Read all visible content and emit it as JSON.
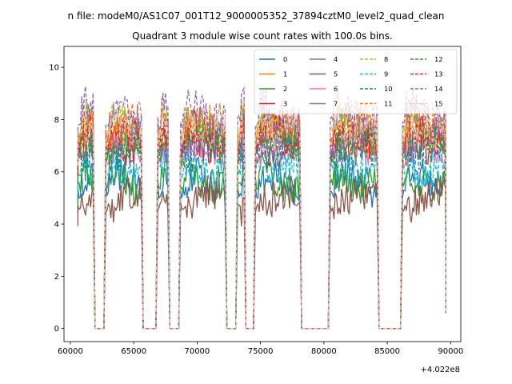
{
  "chart_data": {
    "type": "line",
    "suptitle": "n file: modeM0/AS1C07_001T12_9000005352_37894cztM0_level2_quad_clean",
    "title": "Quadrant 3 module wise count rates with 100.0s bins.",
    "xlabel": "",
    "ylabel": "",
    "x_offset_label": "+4.022e8",
    "xlim": [
      59500,
      90800
    ],
    "ylim": [
      -0.5,
      10.8
    ],
    "xticks": [
      60000,
      65000,
      70000,
      75000,
      80000,
      85000,
      90000
    ],
    "xtick_labels": [
      "60000",
      "65000",
      "70000",
      "75000",
      "80000",
      "85000",
      "90000"
    ],
    "yticks": [
      0,
      2,
      4,
      6,
      8,
      10
    ],
    "ytick_labels": [
      "0",
      "2",
      "4",
      "6",
      "8",
      "10"
    ],
    "grid": false,
    "legend": {
      "placement": "top-right",
      "columns": 4
    },
    "segments": [
      [
        60600,
        61800
      ],
      [
        62800,
        65600
      ],
      [
        66900,
        67700
      ],
      [
        68700,
        72200
      ],
      [
        73200,
        73700
      ],
      [
        74600,
        78100
      ],
      [
        80500,
        84200
      ],
      [
        86200,
        89600
      ]
    ],
    "off_level": 0,
    "series": [
      {
        "name": "0",
        "color": "#1f77b4",
        "dash": false,
        "mean": 5.5
      },
      {
        "name": "1",
        "color": "#ff7f0e",
        "dash": false,
        "mean": 7.5
      },
      {
        "name": "2",
        "color": "#2ca02c",
        "dash": false,
        "mean": 5.8
      },
      {
        "name": "3",
        "color": "#d62728",
        "dash": false,
        "mean": 7.2
      },
      {
        "name": "4",
        "color": "#9467bd",
        "dash": false,
        "mean": 7.4
      },
      {
        "name": "5",
        "color": "#8c564b",
        "dash": false,
        "mean": 4.9
      },
      {
        "name": "6",
        "color": "#e377c2",
        "dash": false,
        "mean": 6.8
      },
      {
        "name": "7",
        "color": "#7f7f7f",
        "dash": false,
        "mean": 7.6
      },
      {
        "name": "8",
        "color": "#bcbd22",
        "dash": true,
        "mean": 7.9
      },
      {
        "name": "9",
        "color": "#17becf",
        "dash": true,
        "mean": 6.4
      },
      {
        "name": "10",
        "color": "#1f77b4",
        "dash": true,
        "mean": 7.0
      },
      {
        "name": "11",
        "color": "#ff7f0e",
        "dash": true,
        "mean": 7.7
      },
      {
        "name": "12",
        "color": "#2ca02c",
        "dash": true,
        "mean": 6.9
      },
      {
        "name": "13",
        "color": "#d62728",
        "dash": true,
        "mean": 7.3
      },
      {
        "name": "14",
        "color": "#9467bd",
        "dash": true,
        "mean": 8.3
      },
      {
        "name": "15",
        "color": "#e7c7b2",
        "dash": true,
        "mean": 7.8
      }
    ]
  }
}
